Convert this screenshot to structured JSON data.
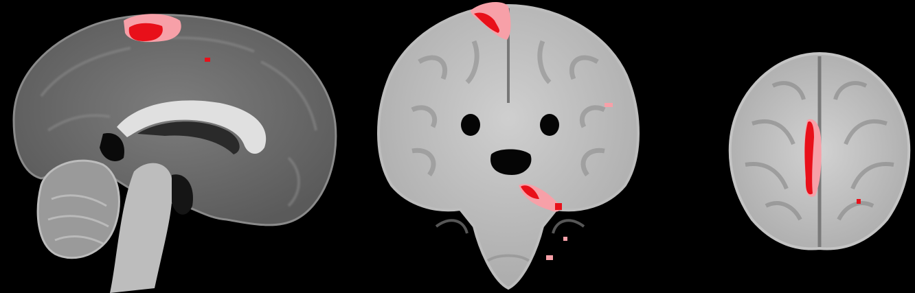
{
  "figure": {
    "background": "#000000",
    "views": [
      {
        "id": "sagittal"
      },
      {
        "id": "coronal"
      },
      {
        "id": "axial"
      }
    ],
    "overlay_colors": {
      "strong": "#e8101a",
      "weak": "#f7a0a8"
    }
  }
}
